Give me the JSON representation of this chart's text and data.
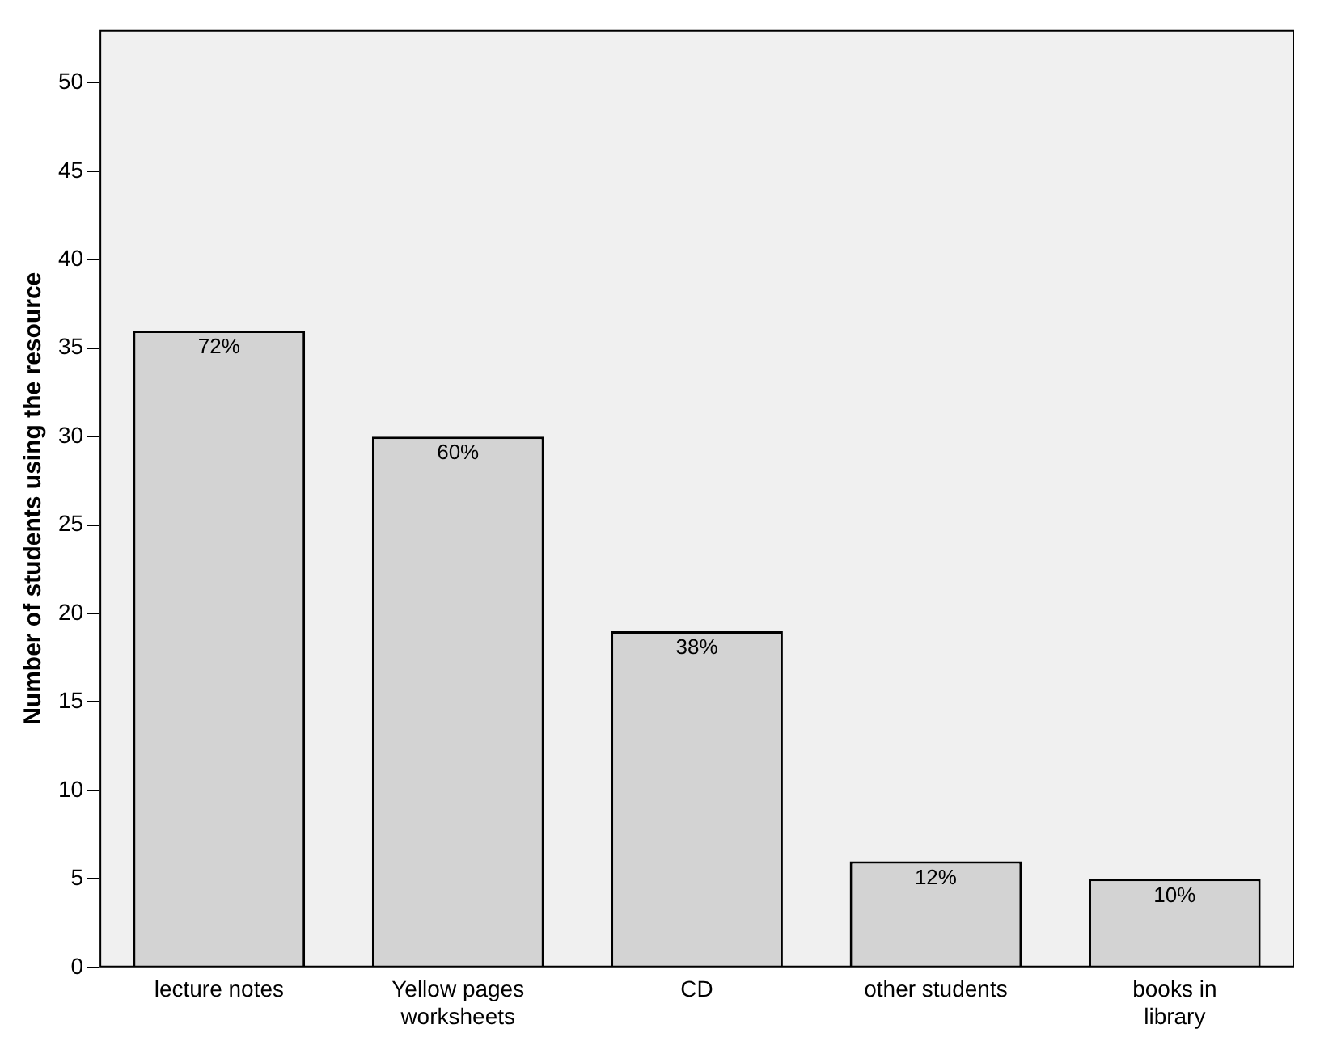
{
  "chart_data": {
    "type": "bar",
    "ylabel": "Number of students using the resource",
    "categories": [
      "lecture notes",
      "Yellow pages worksheets",
      "CD",
      "other students",
      "books in library"
    ],
    "values": [
      36,
      30,
      19,
      6,
      5
    ],
    "annotations": [
      {
        "text": "72%",
        "x": "lecture notes",
        "y": 36
      },
      {
        "text": "60%",
        "x": "Yellow pages worksheets",
        "y": 30
      },
      {
        "text": "38%",
        "x": "CD",
        "y": 19
      },
      {
        "text": "12%",
        "x": "other students",
        "y": 6
      },
      {
        "text": "10%",
        "x": "books in library",
        "y": 5
      }
    ],
    "color": "#d3d3d3",
    "ylim": [
      0,
      53
    ],
    "yticks": [
      0,
      5,
      10,
      15,
      20,
      25,
      30,
      35,
      40,
      45,
      50
    ],
    "grid": false,
    "legend": false
  }
}
